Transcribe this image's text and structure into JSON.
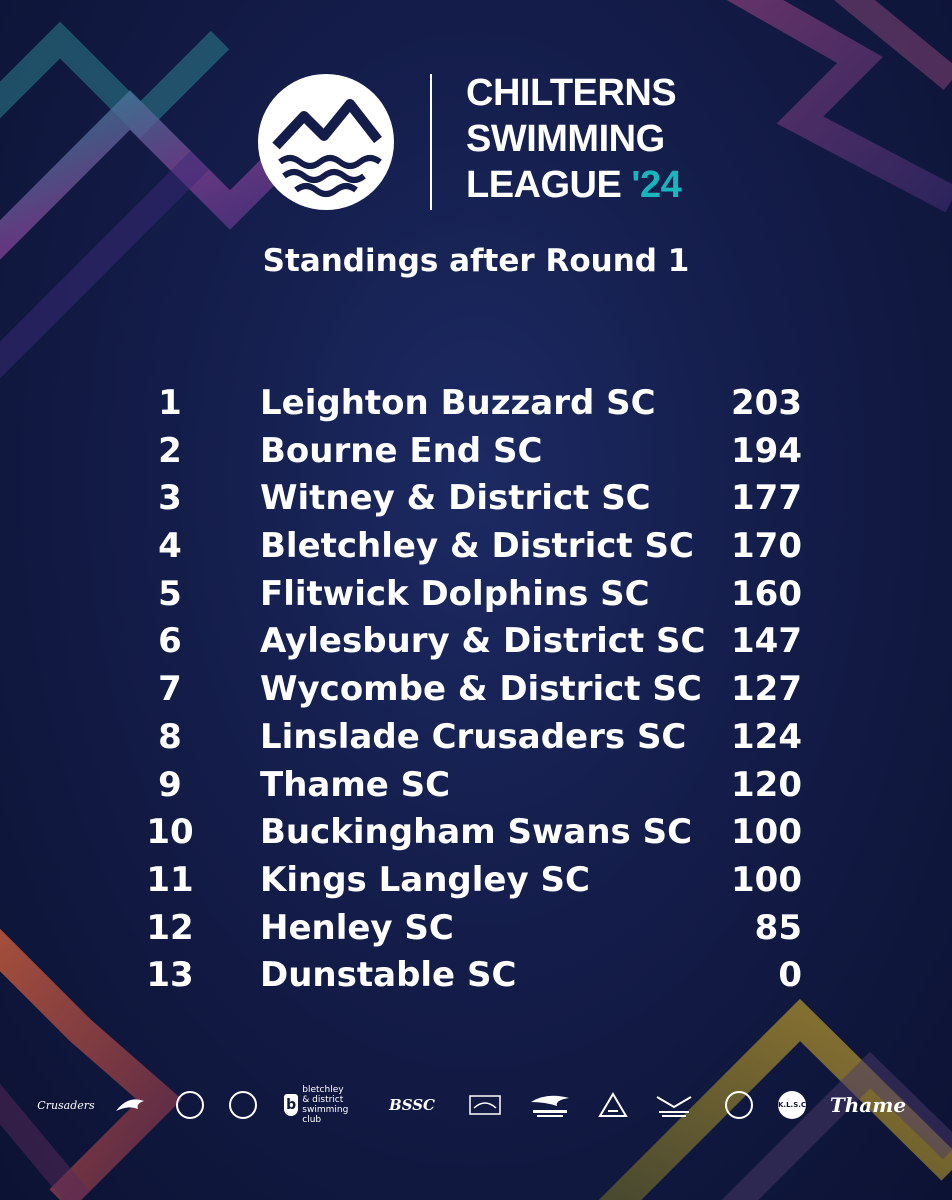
{
  "header": {
    "title_lines": [
      "CHILTERNS",
      "SWIMMING",
      "LEAGUE"
    ],
    "year": "'24",
    "subtitle": "Standings after Round 1"
  },
  "standings": [
    {
      "pos": "1",
      "club": "Leighton Buzzard SC",
      "points": "203"
    },
    {
      "pos": "2",
      "club": "Bourne End SC",
      "points": "194"
    },
    {
      "pos": "3",
      "club": "Witney & District SC",
      "points": "177"
    },
    {
      "pos": "4",
      "club": "Bletchley & District SC",
      "points": "170"
    },
    {
      "pos": "5",
      "club": "Flitwick Dolphins SC",
      "points": "160"
    },
    {
      "pos": "6",
      "club": "Aylesbury & District SC",
      "points": "147"
    },
    {
      "pos": "7",
      "club": "Wycombe & District SC",
      "points": "127"
    },
    {
      "pos": "8",
      "club": "Linslade Crusaders SC",
      "points": "124"
    },
    {
      "pos": "9",
      "club": "Thame SC",
      "points": "120"
    },
    {
      "pos": "10",
      "club": "Buckingham Swans SC",
      "points": "100"
    },
    {
      "pos": "11",
      "club": "Kings Langley SC",
      "points": "100"
    },
    {
      "pos": "12",
      "club": "Henley SC",
      "points": "85"
    },
    {
      "pos": "13",
      "club": "Dunstable SC",
      "points": "0"
    }
  ],
  "sponsors": {
    "crusaders": "Crusaders",
    "bletchley_lines": [
      "bletchley",
      "& district",
      "swimming club"
    ],
    "bssc": "BSSC",
    "klsc": "K.L.S.C",
    "thame": "Thame"
  },
  "colors": {
    "background": "#141d4a",
    "accent_teal": "#18b5bd",
    "accent_purple": "#8a3f9a",
    "accent_orange": "#c8603a",
    "accent_gold": "#c9a12a"
  }
}
